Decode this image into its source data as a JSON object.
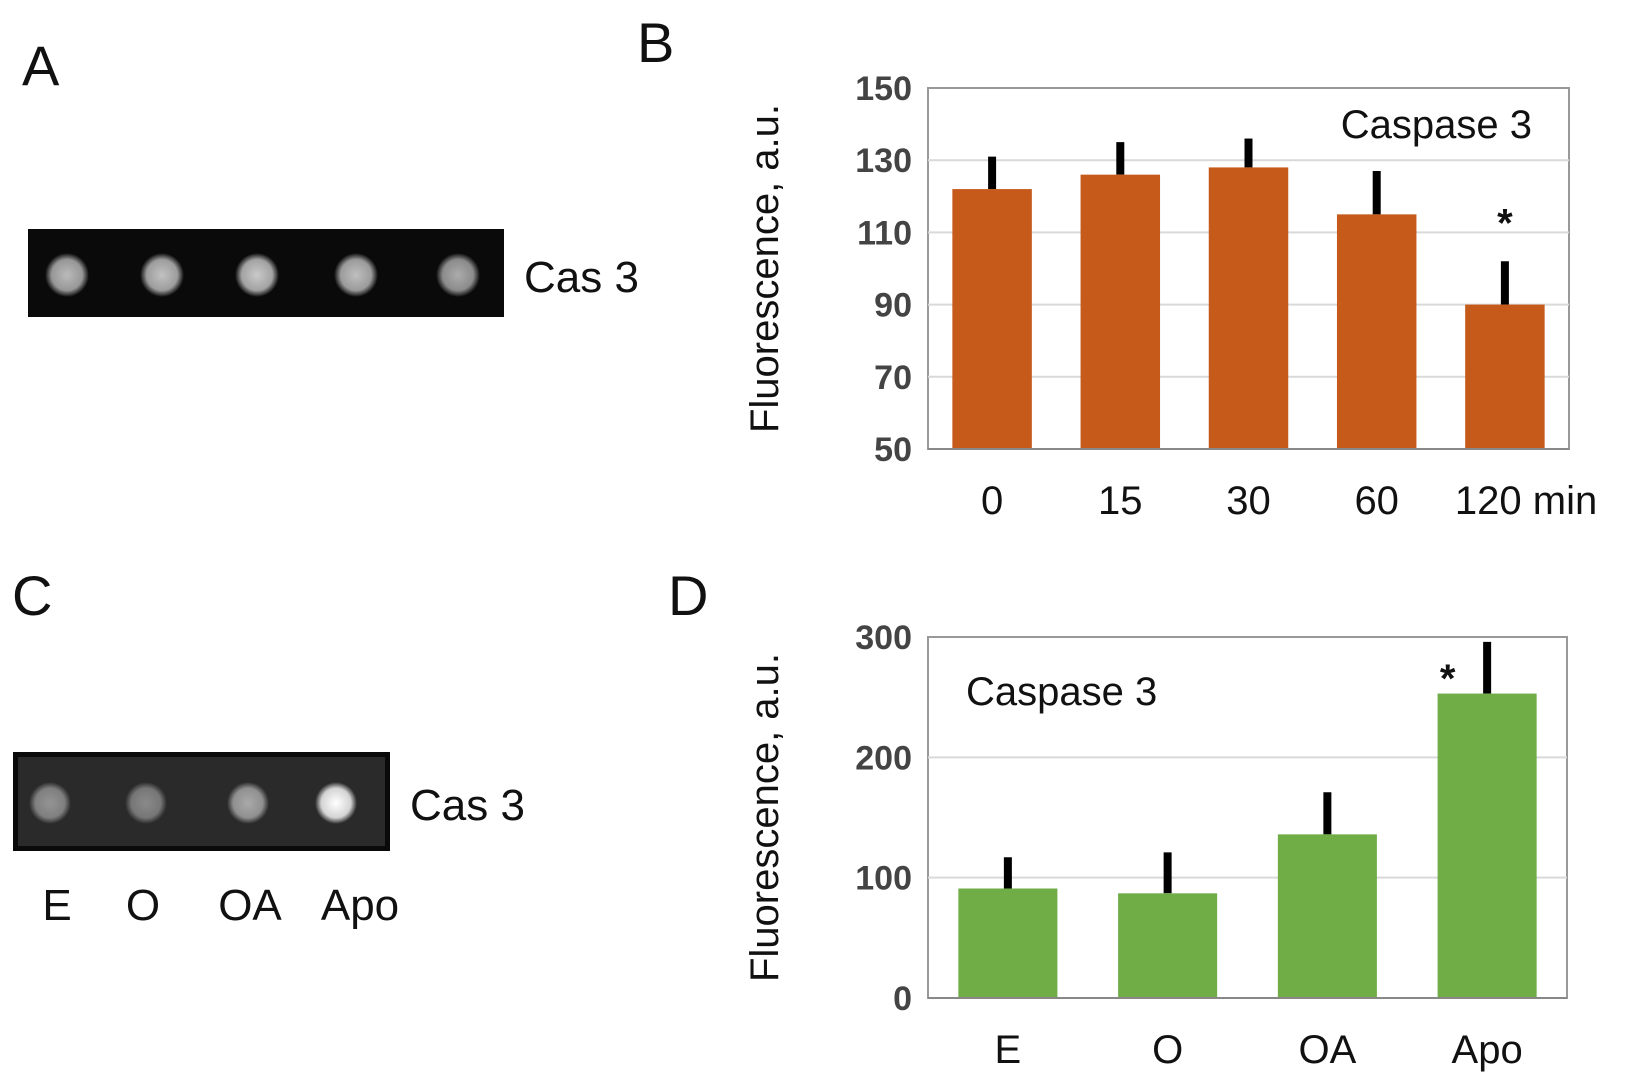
{
  "panels": {
    "a": "A",
    "b": "B",
    "c": "C",
    "d": "D"
  },
  "blots": [
    {
      "label": "Cas 3",
      "lanes": [],
      "spot_brightness": [
        0.72,
        0.75,
        0.78,
        0.74,
        0.66
      ]
    },
    {
      "label": "Cas 3",
      "lanes": [
        "E",
        "O",
        "OA",
        "Apo"
      ],
      "spot_brightness": [
        0.5,
        0.45,
        0.6,
        1.0
      ]
    }
  ],
  "chart_data": [
    {
      "type": "bar",
      "title": "",
      "annotation": "Caspase 3",
      "ylabel": "Fluorescence, a.u.",
      "xlabel": "",
      "categories": [
        "0",
        "15",
        "30",
        "60",
        "120 min"
      ],
      "values": [
        122,
        126,
        128,
        115,
        90
      ],
      "error_upper": [
        131,
        135,
        136,
        127,
        102
      ],
      "significance": [
        "",
        "",
        "",
        "",
        "*"
      ],
      "ylim": [
        50,
        150
      ],
      "yticks": [
        50,
        70,
        90,
        110,
        130,
        150
      ],
      "grid": true,
      "color": "#c55a1a"
    },
    {
      "type": "bar",
      "title": "",
      "annotation": "Caspase 3",
      "ylabel": "Fluorescence, a.u.",
      "xlabel": "",
      "categories": [
        "E",
        "O",
        "OA",
        "Apo"
      ],
      "values": [
        91,
        87,
        136,
        253
      ],
      "error_upper": [
        117,
        121,
        171,
        296
      ],
      "significance": [
        "",
        "",
        "",
        "*"
      ],
      "ylim": [
        0,
        300
      ],
      "yticks": [
        0,
        100,
        200,
        300
      ],
      "grid": true,
      "color": "#70ad47"
    }
  ]
}
